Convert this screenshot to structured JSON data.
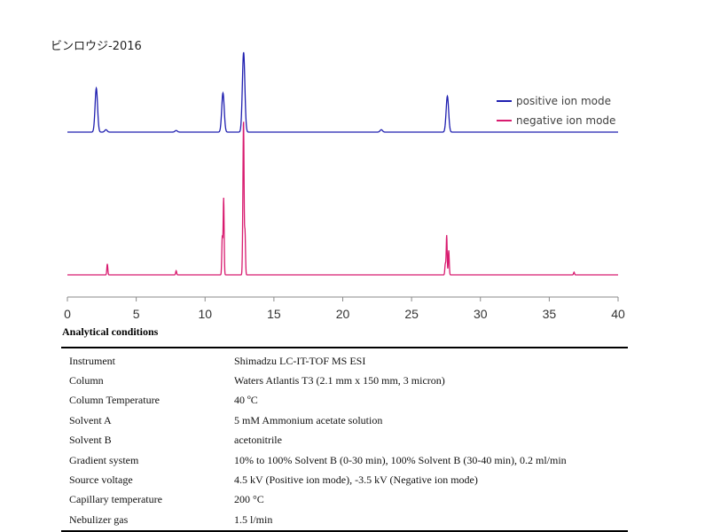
{
  "chart_data": {
    "type": "line",
    "title": "ビンロウジ-2016",
    "xlabel": "",
    "ylabel": "",
    "xlim": [
      0,
      40
    ],
    "x_ticks": [
      0,
      5,
      10,
      15,
      20,
      25,
      30,
      35,
      40
    ],
    "grid": false,
    "legend_position": "top-right",
    "series": [
      {
        "name": "positive ion mode",
        "color": "#1f1fb0",
        "peaks": [
          {
            "rt": 2.1,
            "height": 0.55
          },
          {
            "rt": 2.8,
            "height": 0.03
          },
          {
            "rt": 7.9,
            "height": 0.02
          },
          {
            "rt": 11.3,
            "height": 0.49
          },
          {
            "rt": 12.8,
            "height": 1.0
          },
          {
            "rt": 22.8,
            "height": 0.03
          },
          {
            "rt": 27.6,
            "height": 0.45
          }
        ]
      },
      {
        "name": "negative ion mode",
        "color": "#d81b6f",
        "peaks": [
          {
            "rt": 2.9,
            "height": 0.08
          },
          {
            "rt": 7.9,
            "height": 0.03
          },
          {
            "rt": 11.25,
            "height": 0.28
          },
          {
            "rt": 11.35,
            "height": 0.56
          },
          {
            "rt": 12.75,
            "height": 0.32
          },
          {
            "rt": 12.8,
            "height": 1.0
          },
          {
            "rt": 12.9,
            "height": 0.32
          },
          {
            "rt": 27.45,
            "height": 0.08
          },
          {
            "rt": 27.55,
            "height": 0.29
          },
          {
            "rt": 27.7,
            "height": 0.18
          },
          {
            "rt": 36.8,
            "height": 0.02
          }
        ]
      }
    ]
  },
  "conditions": {
    "title": "Analytical conditions",
    "rows": [
      {
        "label": "Instrument",
        "value": "Shimadzu LC-IT-TOF MS ESI"
      },
      {
        "label": "Column",
        "value": "Waters Atlantis T3 (2.1 mm x 150 mm, 3 micron)"
      },
      {
        "label": "Column Temperature",
        "value": "40 ºC"
      },
      {
        "label": "Solvent A",
        "value": "5 mM Ammonium acetate solution"
      },
      {
        "label": "Solvent B",
        "value": "acetonitrile"
      },
      {
        "label": "Gradient system",
        "value": "10% to 100% Solvent B (0-30 min), 100% Solvent B (30-40 min), 0.2 ml/min"
      },
      {
        "label": "Source voltage",
        "value": "4.5 kV (Positive ion mode), -3.5 kV (Negative ion mode)"
      },
      {
        "label": "Capillary temperature",
        "value": "200 °C"
      },
      {
        "label": "Nebulizer gas",
        "value": "1.5 l/min"
      }
    ]
  }
}
